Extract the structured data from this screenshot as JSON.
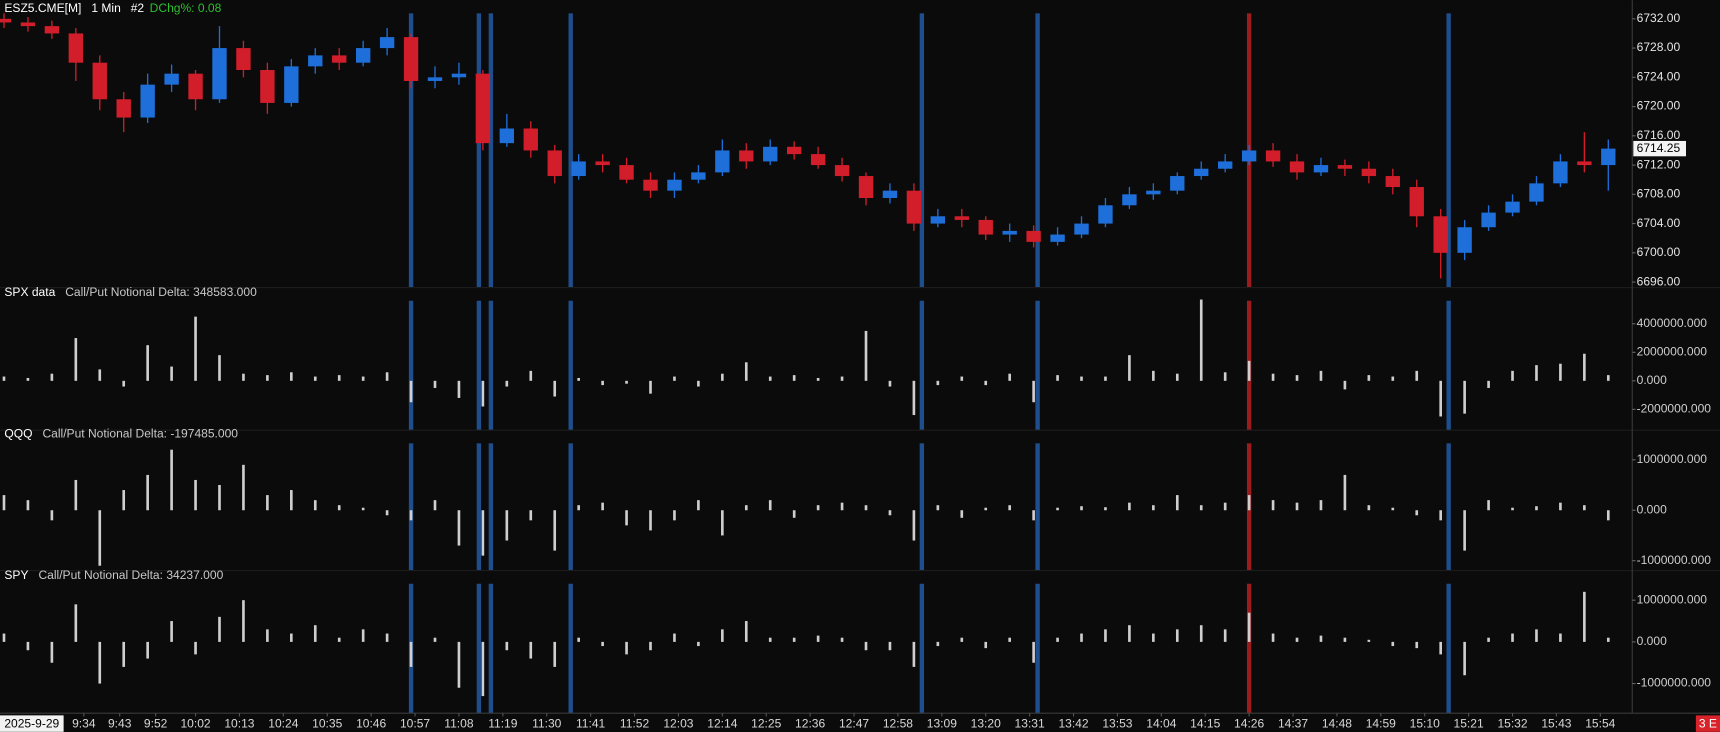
{
  "chart_data": [
    {
      "type": "candlestick",
      "title": "ESZ5.CME[M]",
      "interval": "1 Min",
      "chart_number": "#2",
      "change": "DChg%: 0.08",
      "date": "2025-9-29",
      "badge": "3 E",
      "up_color": "#1e6fd9",
      "down_color": "#d21e2a",
      "xlim": [
        "9:13",
        "16:02"
      ],
      "xticks": [
        "9:34",
        "9:43",
        "9:52",
        "10:02",
        "10:13",
        "10:24",
        "10:35",
        "10:46",
        "10:57",
        "11:08",
        "11:19",
        "11:30",
        "11:41",
        "11:52",
        "12:03",
        "12:14",
        "12:25",
        "12:36",
        "12:47",
        "12:58",
        "13:09",
        "13:20",
        "13:31",
        "13:42",
        "13:53",
        "14:04",
        "14:15",
        "14:26",
        "14:37",
        "14:48",
        "14:59",
        "15:10",
        "15:21",
        "15:32",
        "15:43",
        "15:54"
      ],
      "markers": [
        {
          "x": "10:56",
          "color": "#1f4e8c"
        },
        {
          "x": "11:13",
          "color": "#1f4e8c"
        },
        {
          "x": "11:16",
          "color": "#1f4e8c"
        },
        {
          "x": "11:36",
          "color": "#1f4e8c"
        },
        {
          "x": "13:04",
          "color": "#1f4e8c"
        },
        {
          "x": "13:33",
          "color": "#1f4e8c"
        },
        {
          "x": "14:26",
          "color": "#9b1c1c"
        },
        {
          "x": "15:16",
          "color": "#1f4e8c"
        }
      ],
      "ylim": [
        6695.25,
        6734.55
      ],
      "yticks": [
        {
          "value": 6696,
          "label": "6696.00"
        },
        {
          "value": 6700,
          "label": "6700.00"
        },
        {
          "value": 6704,
          "label": "6704.00"
        },
        {
          "value": 6708,
          "label": "6708.00"
        },
        {
          "value": 6712,
          "label": "6712.00"
        },
        {
          "value": 6716,
          "label": "6716.00"
        },
        {
          "value": 6720,
          "label": "6720.00"
        },
        {
          "value": 6724,
          "label": "6724.00"
        },
        {
          "value": 6728,
          "label": "6728.00"
        },
        {
          "value": 6732,
          "label": "6732.00"
        }
      ],
      "last_price": {
        "value": 6714.25,
        "label": "6714.25"
      },
      "x": [
        "9:14",
        "9:20",
        "9:26",
        "9:32",
        "9:38",
        "9:44",
        "9:50",
        "9:56",
        "10:02",
        "10:08",
        "10:14",
        "10:20",
        "10:26",
        "10:32",
        "10:38",
        "10:44",
        "10:50",
        "10:56",
        "11:02",
        "11:08",
        "11:14",
        "11:20",
        "11:26",
        "11:32",
        "11:38",
        "11:44",
        "11:50",
        "11:56",
        "12:02",
        "12:08",
        "12:14",
        "12:20",
        "12:26",
        "12:32",
        "12:38",
        "12:44",
        "12:50",
        "12:56",
        "13:02",
        "13:08",
        "13:14",
        "13:20",
        "13:26",
        "13:32",
        "13:38",
        "13:44",
        "13:50",
        "13:56",
        "14:02",
        "14:08",
        "14:14",
        "14:20",
        "14:26",
        "14:32",
        "14:38",
        "14:44",
        "14:50",
        "14:56",
        "15:02",
        "15:08",
        "15:14",
        "15:20",
        "15:26",
        "15:32",
        "15:38",
        "15:44",
        "15:50",
        "15:56"
      ],
      "open": [
        6732,
        6731.5,
        6731,
        6730,
        6726,
        6721,
        6718.5,
        6723,
        6724.5,
        6721,
        6728,
        6725,
        6720.5,
        6725.5,
        6727,
        6726,
        6728,
        6729.5,
        6723.5,
        6724,
        6724.5,
        6715,
        6717,
        6714,
        6710.5,
        6712.5,
        6712,
        6710,
        6708.5,
        6710,
        6711,
        6714,
        6712.5,
        6714.5,
        6713.5,
        6712,
        6710.5,
        6707.5,
        6708.5,
        6704,
        6705,
        6704.5,
        6702.5,
        6703,
        6701.5,
        6702.5,
        6704,
        6706.5,
        6708,
        6708.5,
        6710.5,
        6711.5,
        6712.5,
        6714,
        6712.5,
        6711,
        6712,
        6711.5,
        6710.5,
        6709,
        6705,
        6700,
        6703.5,
        6705.5,
        6707,
        6709.5,
        6712.5,
        6712
      ],
      "high": [
        6732.75,
        6732.25,
        6731.75,
        6730.75,
        6727,
        6722,
        6724.5,
        6725.75,
        6725,
        6731,
        6729,
        6726,
        6726.5,
        6728,
        6728,
        6729,
        6730.75,
        6730,
        6725.5,
        6726,
        6725,
        6719,
        6718,
        6714.75,
        6713.5,
        6713.5,
        6713,
        6711,
        6711,
        6712,
        6715.5,
        6715,
        6715.5,
        6715.25,
        6714.5,
        6713,
        6711,
        6709.5,
        6709.5,
        6706,
        6706,
        6705,
        6704,
        6703.75,
        6703.5,
        6705,
        6707.5,
        6709,
        6709.5,
        6711,
        6712.5,
        6713.5,
        6714.75,
        6715,
        6713.5,
        6713,
        6712.75,
        6712.5,
        6711.5,
        6710,
        6706,
        6704.5,
        6706.5,
        6708,
        6710.5,
        6713.5,
        6716.5,
        6715.5
      ],
      "low": [
        6730.75,
        6730.25,
        6729.25,
        6723.5,
        6719.5,
        6716.5,
        6717.75,
        6722,
        6719.5,
        6720.5,
        6724,
        6719,
        6720,
        6724.5,
        6725,
        6725.5,
        6727,
        6722.5,
        6722.5,
        6723,
        6714,
        6714.5,
        6713,
        6709.5,
        6710,
        6711,
        6709.5,
        6707.5,
        6707.5,
        6709.5,
        6710.5,
        6711.5,
        6712,
        6712.75,
        6711.5,
        6709.75,
        6706.5,
        6706.75,
        6703,
        6703.5,
        6703.5,
        6701.75,
        6701.5,
        6700.75,
        6701,
        6702,
        6703.5,
        6706,
        6707.25,
        6708,
        6710,
        6711,
        6712,
        6711.75,
        6710,
        6710.5,
        6710.5,
        6709.5,
        6708,
        6703.5,
        6696.5,
        6699,
        6703,
        6705,
        6706.5,
        6709,
        6711,
        6708.5
      ],
      "close": [
        6731.5,
        6731,
        6730,
        6726,
        6721,
        6718.5,
        6723,
        6724.5,
        6721,
        6728,
        6725,
        6720.5,
        6725.5,
        6727,
        6726,
        6728,
        6729.5,
        6723.5,
        6724,
        6724.5,
        6715,
        6717,
        6714,
        6710.5,
        6712.5,
        6712,
        6710,
        6708.5,
        6710,
        6711,
        6714,
        6712.5,
        6714.5,
        6713.5,
        6712,
        6710.5,
        6707.5,
        6708.5,
        6704,
        6705,
        6704.5,
        6702.5,
        6703,
        6701.5,
        6702.5,
        6704,
        6706.5,
        6708,
        6708.5,
        6710.5,
        6711.5,
        6712.5,
        6714,
        6712.5,
        6711,
        6712,
        6711.5,
        6710.5,
        6709,
        6705,
        6700,
        6703.5,
        6705.5,
        6707,
        6709.5,
        6712.5,
        6712,
        6714.25
      ]
    },
    {
      "type": "bar",
      "title": "SPX data",
      "subtitle": "Call/Put Notional Delta: 348583.000",
      "color": "#cfcfcf",
      "ylim": [
        -3460000,
        6540000
      ],
      "yticks": [
        {
          "value": -2000000,
          "label": "-2000000.000"
        },
        {
          "value": 0,
          "label": "0.000"
        },
        {
          "value": 2000000,
          "label": "2000000.000"
        },
        {
          "value": 4000000,
          "label": "4000000.000"
        }
      ],
      "x": [
        "9:14",
        "9:20",
        "9:26",
        "9:32",
        "9:38",
        "9:44",
        "9:50",
        "9:56",
        "10:02",
        "10:08",
        "10:14",
        "10:20",
        "10:26",
        "10:32",
        "10:38",
        "10:44",
        "10:50",
        "10:56",
        "11:02",
        "11:08",
        "11:14",
        "11:20",
        "11:26",
        "11:32",
        "11:38",
        "11:44",
        "11:50",
        "11:56",
        "12:02",
        "12:08",
        "12:14",
        "12:20",
        "12:26",
        "12:32",
        "12:38",
        "12:44",
        "12:50",
        "12:56",
        "13:02",
        "13:08",
        "13:14",
        "13:20",
        "13:26",
        "13:32",
        "13:38",
        "13:44",
        "13:50",
        "13:56",
        "14:02",
        "14:08",
        "14:14",
        "14:20",
        "14:26",
        "14:32",
        "14:38",
        "14:44",
        "14:50",
        "14:56",
        "15:02",
        "15:08",
        "15:14",
        "15:20",
        "15:26",
        "15:32",
        "15:38",
        "15:44",
        "15:50",
        "15:56"
      ],
      "values": [
        300000,
        200000,
        500000,
        3000000,
        800000,
        -400000,
        2500000,
        1000000,
        4500000,
        1800000,
        500000,
        400000,
        600000,
        300000,
        400000,
        300000,
        600000,
        -1500000,
        -500000,
        -1200000,
        -1800000,
        -400000,
        700000,
        -1100000,
        200000,
        -300000,
        -200000,
        -900000,
        300000,
        -400000,
        500000,
        1300000,
        300000,
        400000,
        200000,
        300000,
        3500000,
        -400000,
        -2400000,
        -300000,
        300000,
        -300000,
        500000,
        -1500000,
        400000,
        300000,
        300000,
        1800000,
        700000,
        500000,
        5700000,
        600000,
        1400000,
        500000,
        400000,
        700000,
        -600000,
        400000,
        300000,
        700000,
        -2500000,
        -2300000,
        -500000,
        700000,
        1100000,
        1200000,
        1900000,
        400000
      ]
    },
    {
      "type": "bar",
      "title": "QQQ",
      "subtitle": "Call/Put Notional Delta: -197485.000",
      "color": "#cfcfcf",
      "ylim": [
        -1196000,
        1587000
      ],
      "yticks": [
        {
          "value": -1000000,
          "label": "-1000000.000"
        },
        {
          "value": 0,
          "label": "0.000"
        },
        {
          "value": 1000000,
          "label": "1000000.000"
        }
      ],
      "x": [
        "9:14",
        "9:20",
        "9:26",
        "9:32",
        "9:38",
        "9:44",
        "9:50",
        "9:56",
        "10:02",
        "10:08",
        "10:14",
        "10:20",
        "10:26",
        "10:32",
        "10:38",
        "10:44",
        "10:50",
        "10:56",
        "11:02",
        "11:08",
        "11:14",
        "11:20",
        "11:26",
        "11:32",
        "11:38",
        "11:44",
        "11:50",
        "11:56",
        "12:02",
        "12:08",
        "12:14",
        "12:20",
        "12:26",
        "12:32",
        "12:38",
        "12:44",
        "12:50",
        "12:56",
        "13:02",
        "13:08",
        "13:14",
        "13:20",
        "13:26",
        "13:32",
        "13:38",
        "13:44",
        "13:50",
        "13:56",
        "14:02",
        "14:08",
        "14:14",
        "14:20",
        "14:26",
        "14:32",
        "14:38",
        "14:44",
        "14:50",
        "14:56",
        "15:02",
        "15:08",
        "15:14",
        "15:20",
        "15:26",
        "15:32",
        "15:38",
        "15:44",
        "15:50",
        "15:56"
      ],
      "values": [
        300000,
        200000,
        -200000,
        600000,
        -1100000,
        400000,
        700000,
        1200000,
        600000,
        500000,
        900000,
        300000,
        400000,
        200000,
        100000,
        50000,
        -100000,
        -200000,
        200000,
        -700000,
        -900000,
        -600000,
        -200000,
        -800000,
        100000,
        150000,
        -300000,
        -400000,
        -200000,
        200000,
        -500000,
        100000,
        200000,
        -150000,
        100000,
        150000,
        100000,
        -100000,
        -600000,
        100000,
        -150000,
        50000,
        100000,
        -200000,
        50000,
        80000,
        60000,
        150000,
        100000,
        300000,
        100000,
        150000,
        300000,
        200000,
        150000,
        200000,
        700000,
        100000,
        50000,
        -100000,
        -200000,
        -800000,
        200000,
        50000,
        80000,
        150000,
        100000,
        -200000
      ]
    },
    {
      "type": "bar",
      "title": "SPY",
      "subtitle": "Call/Put Notional Delta: 34237.000",
      "color": "#cfcfcf",
      "ylim": [
        -1710000,
        1710000
      ],
      "yticks": [
        {
          "value": -1000000,
          "label": "-1000000.000"
        },
        {
          "value": 0,
          "label": "0.000"
        },
        {
          "value": 1000000,
          "label": "1000000.000"
        }
      ],
      "x": [
        "9:14",
        "9:20",
        "9:26",
        "9:32",
        "9:38",
        "9:44",
        "9:50",
        "9:56",
        "10:02",
        "10:08",
        "10:14",
        "10:20",
        "10:26",
        "10:32",
        "10:38",
        "10:44",
        "10:50",
        "10:56",
        "11:02",
        "11:08",
        "11:14",
        "11:20",
        "11:26",
        "11:32",
        "11:38",
        "11:44",
        "11:50",
        "11:56",
        "12:02",
        "12:08",
        "12:14",
        "12:20",
        "12:26",
        "12:32",
        "12:38",
        "12:44",
        "12:50",
        "12:56",
        "13:02",
        "13:08",
        "13:14",
        "13:20",
        "13:26",
        "13:32",
        "13:38",
        "13:44",
        "13:50",
        "13:56",
        "14:02",
        "14:08",
        "14:14",
        "14:20",
        "14:26",
        "14:32",
        "14:38",
        "14:44",
        "14:50",
        "14:56",
        "15:02",
        "15:08",
        "15:14",
        "15:20",
        "15:26",
        "15:32",
        "15:38",
        "15:44",
        "15:50",
        "15:56"
      ],
      "values": [
        200000,
        -200000,
        -500000,
        900000,
        -1000000,
        -600000,
        -400000,
        500000,
        -300000,
        600000,
        1000000,
        300000,
        200000,
        400000,
        100000,
        300000,
        200000,
        -600000,
        100000,
        -1100000,
        -1300000,
        -200000,
        -400000,
        -600000,
        100000,
        -100000,
        -300000,
        -200000,
        200000,
        -100000,
        300000,
        500000,
        100000,
        100000,
        150000,
        100000,
        -200000,
        -200000,
        -600000,
        -100000,
        100000,
        -150000,
        100000,
        -500000,
        100000,
        200000,
        300000,
        400000,
        200000,
        300000,
        400000,
        300000,
        700000,
        200000,
        100000,
        150000,
        100000,
        50000,
        -100000,
        -150000,
        -300000,
        -800000,
        100000,
        200000,
        300000,
        200000,
        1200000,
        100000
      ]
    }
  ]
}
